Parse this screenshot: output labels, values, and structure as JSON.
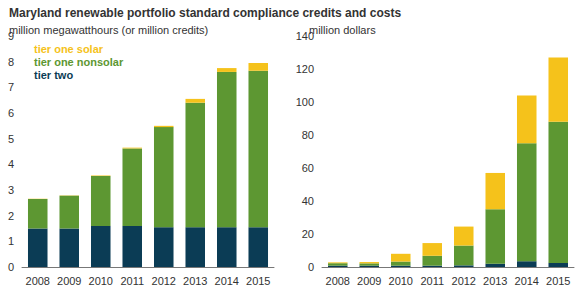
{
  "title": "Maryland renewable portfolio standard compliance credits and costs",
  "chart_data": [
    {
      "type": "bar",
      "ylabel": "million megawatthours (or million credits)",
      "categories": [
        "2008",
        "2009",
        "2010",
        "2011",
        "2012",
        "2013",
        "2014",
        "2015"
      ],
      "stacked": true,
      "legend": "top-left",
      "grid": false,
      "ylim": [
        0,
        9
      ],
      "yticks": [
        0,
        1,
        2,
        3,
        4,
        5,
        6,
        7,
        8,
        9
      ],
      "series": [
        {
          "name": "tier two",
          "color": "#0b3c55",
          "values": [
            1.5,
            1.5,
            1.6,
            1.6,
            1.55,
            1.55,
            1.55,
            1.55
          ]
        },
        {
          "name": "tier one nonsolar",
          "color": "#5d9732",
          "values": [
            1.15,
            1.28,
            1.95,
            3.02,
            3.9,
            4.85,
            6.05,
            6.1
          ]
        },
        {
          "name": "tier one solar",
          "color": "#f5c21b",
          "values": [
            0.01,
            0.01,
            0.02,
            0.03,
            0.05,
            0.15,
            0.15,
            0.3
          ]
        }
      ]
    },
    {
      "type": "bar",
      "ylabel": "million dollars",
      "categories": [
        "2008",
        "2009",
        "2010",
        "2011",
        "2012",
        "2013",
        "2014",
        "2015"
      ],
      "stacked": true,
      "grid": false,
      "ylim": [
        0,
        140
      ],
      "yticks": [
        0,
        20,
        40,
        60,
        80,
        100,
        120,
        140
      ],
      "series": [
        {
          "name": "tier two",
          "color": "#0b3c55",
          "values": [
            0.8,
            0.8,
            0.8,
            0.8,
            1,
            2,
            3.5,
            2.5
          ]
        },
        {
          "name": "tier one nonsolar",
          "color": "#5d9732",
          "values": [
            1.5,
            1.4,
            2.5,
            6,
            12,
            33,
            71.5,
            85.5
          ]
        },
        {
          "name": "tier one solar",
          "color": "#f5c21b",
          "values": [
            0.5,
            0.8,
            4.7,
            7.7,
            11.5,
            22,
            29,
            39
          ]
        }
      ]
    }
  ]
}
